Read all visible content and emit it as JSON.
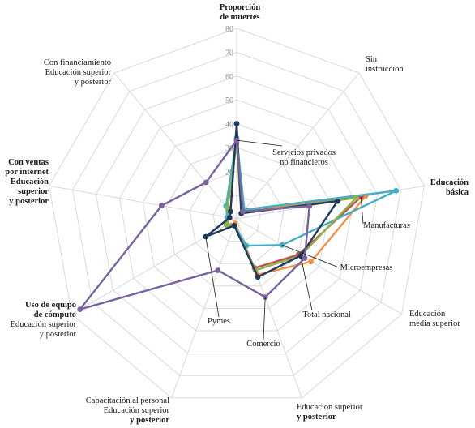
{
  "chart_data": {
    "type": "radar",
    "max": 80,
    "ticks": [
      10,
      20,
      30,
      40,
      50,
      60,
      70,
      80
    ],
    "axes": [
      {
        "label": [
          "Proporción",
          "de muertes"
        ],
        "bold": true
      },
      {
        "label": [
          "Sin",
          "instrucción"
        ],
        "bold": false
      },
      {
        "label": [
          "Educación",
          "básica"
        ],
        "bold": true
      },
      {
        "label": [
          "Educación",
          "media superior"
        ],
        "bold": false
      },
      {
        "label": [
          "Educación superior",
          "y posterior"
        ],
        "bold": false,
        "lastBold": true
      },
      {
        "label": [
          "Capacitación al personal",
          "Educación superior",
          "y posterior"
        ],
        "bold": false,
        "lastBold": true
      },
      {
        "label": [
          "Uso de equipo",
          "de cómputo",
          "Educación superior",
          "y posterior"
        ],
        "bold": false,
        "boldLines": [
          0,
          1
        ]
      },
      {
        "label": [
          "Con ventas",
          "por internet",
          "Educación",
          "superior",
          "y posterior"
        ],
        "bold": true
      },
      {
        "label": [
          "Con financiamiento",
          "Educación superior",
          "y posterior"
        ],
        "bold": false
      }
    ],
    "series": [
      {
        "name": "Servicios privados no financieros",
        "color": "#f0924a",
        "values": [
          33,
          4,
          55,
          36,
          25,
          2,
          5,
          3,
          6
        ]
      },
      {
        "name": "Manufacturas",
        "color": "#c0504d",
        "values": [
          33,
          3,
          53,
          30,
          22,
          3,
          5,
          4,
          6
        ]
      },
      {
        "name": "Microempresas",
        "color": "#43aec5",
        "values": [
          34,
          5,
          68,
          22,
          12,
          3,
          5,
          4,
          7
        ]
      },
      {
        "name": "Total nacional",
        "color": "#8db04a",
        "values": [
          32,
          3,
          51,
          31,
          23,
          3,
          5,
          3,
          6
        ]
      },
      {
        "name": "Pymes",
        "color": "#1f3a5c",
        "values": [
          40,
          3,
          43,
          31,
          26,
          3,
          15,
          3,
          4
        ]
      },
      {
        "name": "Comercio",
        "color": "#7a62a0",
        "values": [
          33,
          4,
          31,
          33,
          35,
          23,
          76,
          32,
          20
        ]
      }
    ],
    "callouts": [
      {
        "series": "Servicios privados no financieros",
        "text": [
          "Servicios privados",
          "no financieros"
        ]
      },
      {
        "series": "Manufacturas",
        "text": [
          "Manufacturas"
        ]
      },
      {
        "series": "Microempresas",
        "text": [
          "Microempresas"
        ]
      },
      {
        "series": "Total nacional",
        "text": [
          "Total nacional"
        ]
      },
      {
        "series": "Pymes",
        "text": [
          "Pymes"
        ]
      },
      {
        "series": "Comercio",
        "text": [
          "Comercio"
        ]
      }
    ]
  }
}
